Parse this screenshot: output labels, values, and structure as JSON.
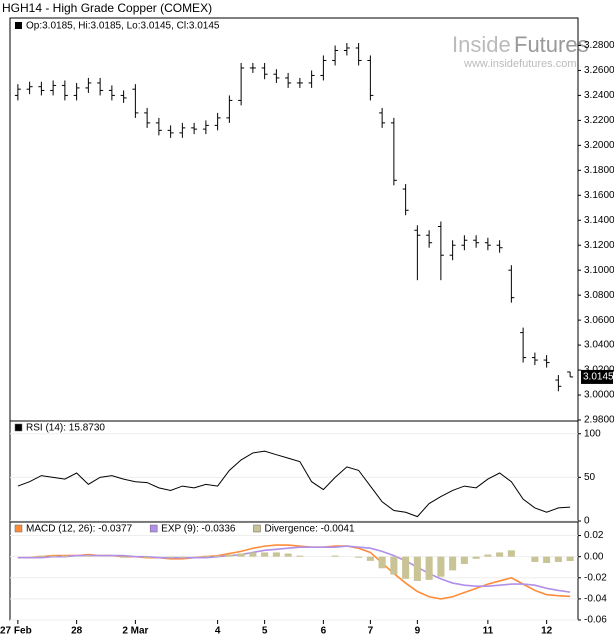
{
  "header": {
    "title": "HGH14 - High Grade Copper (COMEX)"
  },
  "logo": {
    "brand_a": "Inside",
    "brand_b": "Futures",
    "url": "www.insidefutures.com"
  },
  "chart_data": [
    {
      "type": "ohlc",
      "info_label": "Op:3.0185, Hi:3.0185, Lo:3.0145, Cl:3.0145",
      "color": "#000000",
      "open": [
        3.24,
        3.245,
        3.247,
        3.244,
        3.248,
        3.24,
        3.246,
        3.25,
        3.244,
        3.24,
        3.245,
        3.226,
        3.218,
        3.212,
        3.21,
        3.214,
        3.213,
        3.216,
        3.222,
        3.236,
        3.262,
        3.262,
        3.257,
        3.254,
        3.25,
        3.25,
        3.256,
        3.268,
        3.276,
        3.278,
        3.268,
        3.226,
        3.218,
        3.165,
        3.132,
        3.128,
        3.135,
        3.112,
        3.12,
        3.124,
        3.122,
        3.12,
        3.1,
        3.05,
        3.03,
        3.028,
        3.012,
        3.0185
      ],
      "high": [
        3.249,
        3.251,
        3.251,
        3.252,
        3.252,
        3.25,
        3.254,
        3.254,
        3.248,
        3.244,
        3.249,
        3.23,
        3.222,
        3.216,
        3.218,
        3.218,
        3.22,
        3.226,
        3.24,
        3.266,
        3.266,
        3.266,
        3.261,
        3.258,
        3.254,
        3.26,
        3.272,
        3.28,
        3.282,
        3.282,
        3.272,
        3.23,
        3.222,
        3.169,
        3.136,
        3.132,
        3.139,
        3.124,
        3.128,
        3.128,
        3.126,
        3.124,
        3.104,
        3.054,
        3.034,
        3.032,
        3.016,
        3.0185
      ],
      "low": [
        3.236,
        3.241,
        3.24,
        3.24,
        3.236,
        3.236,
        3.242,
        3.24,
        3.236,
        3.234,
        3.222,
        3.214,
        3.208,
        3.206,
        3.206,
        3.209,
        3.209,
        3.212,
        3.218,
        3.232,
        3.258,
        3.253,
        3.25,
        3.246,
        3.246,
        3.246,
        3.252,
        3.264,
        3.272,
        3.264,
        3.236,
        3.214,
        3.168,
        3.144,
        3.092,
        3.118,
        3.092,
        3.108,
        3.116,
        3.118,
        3.116,
        3.114,
        3.074,
        3.026,
        3.024,
        3.022,
        3.003,
        3.0145
      ],
      "close": [
        3.245,
        3.247,
        3.244,
        3.248,
        3.24,
        3.246,
        3.25,
        3.244,
        3.24,
        3.238,
        3.226,
        3.218,
        3.212,
        3.21,
        3.214,
        3.213,
        3.216,
        3.222,
        3.236,
        3.262,
        3.262,
        3.257,
        3.254,
        3.25,
        3.25,
        3.256,
        3.268,
        3.276,
        3.278,
        3.268,
        3.24,
        3.218,
        3.172,
        3.148,
        3.128,
        3.122,
        3.112,
        3.12,
        3.124,
        3.122,
        3.12,
        3.118,
        3.078,
        3.03,
        3.028,
        3.026,
        3.007,
        3.0145
      ],
      "ylim": [
        2.98,
        3.29
      ],
      "yticks": [
        {
          "value": 3.28,
          "label": "3.2800"
        },
        {
          "value": 3.26,
          "label": "3.2600"
        },
        {
          "value": 3.24,
          "label": "3.2400"
        },
        {
          "value": 3.22,
          "label": "3.2200"
        },
        {
          "value": 3.2,
          "label": "3.2000"
        },
        {
          "value": 3.18,
          "label": "3.1800"
        },
        {
          "value": 3.16,
          "label": "3.1600"
        },
        {
          "value": 3.14,
          "label": "3.1400"
        },
        {
          "value": 3.12,
          "label": "3.1200"
        },
        {
          "value": 3.1,
          "label": "3.1000"
        },
        {
          "value": 3.08,
          "label": "3.0800"
        },
        {
          "value": 3.06,
          "label": "3.0600"
        },
        {
          "value": 3.04,
          "label": "3.0400"
        },
        {
          "value": 3.02,
          "label": "3.0200"
        },
        {
          "value": 3.0,
          "label": "3.0000"
        },
        {
          "value": 2.98,
          "label": "2.9800"
        }
      ]
    },
    {
      "type": "line",
      "ylim": [
        0,
        110
      ],
      "yticks": [
        0,
        50,
        100
      ],
      "series": [
        {
          "name": "RSI (14): 15.8730",
          "color": "#000000",
          "values": [
            40,
            45,
            52,
            50,
            48,
            55,
            42,
            50,
            52,
            48,
            45,
            44,
            38,
            35,
            40,
            38,
            42,
            40,
            58,
            70,
            78,
            80,
            76,
            72,
            68,
            45,
            36,
            50,
            62,
            58,
            40,
            22,
            12,
            10,
            5,
            20,
            28,
            35,
            40,
            38,
            48,
            55,
            45,
            25,
            15,
            10,
            15,
            15.873
          ]
        }
      ]
    },
    {
      "type": "macd",
      "ylim": [
        -0.06,
        0.03
      ],
      "yticks": [
        {
          "value": 0.02,
          "label": "0.02"
        },
        {
          "value": 0,
          "label": "0.00"
        },
        {
          "value": -0.02,
          "label": "-0.02"
        },
        {
          "value": -0.04,
          "label": "-0.04"
        },
        {
          "value": -0.06,
          "label": "-0.06"
        }
      ],
      "categories": [
        "27 Feb",
        null,
        null,
        null,
        null,
        "28",
        null,
        null,
        null,
        null,
        "2 Mar",
        null,
        null,
        null,
        null,
        null,
        null,
        "4",
        null,
        null,
        null,
        "5",
        null,
        null,
        null,
        null,
        "6",
        null,
        null,
        null,
        "7",
        null,
        null,
        null,
        "9",
        null,
        null,
        null,
        null,
        null,
        "11",
        null,
        null,
        null,
        null,
        "12",
        null,
        null
      ],
      "series": [
        {
          "name": "MACD (12, 26): -0.0377",
          "color": "#ff8c3a",
          "style": "line",
          "values": [
            -0.001,
            -0.001,
            0,
            0.001,
            0.001,
            0.001,
            0.002,
            0.001,
            0.001,
            0,
            0,
            -0.001,
            -0.001,
            -0.002,
            -0.002,
            -0.001,
            0,
            0.001,
            0.003,
            0.005,
            0.008,
            0.01,
            0.011,
            0.011,
            0.01,
            0.009,
            0.009,
            0.01,
            0.01,
            0.008,
            0.004,
            -0.006,
            -0.016,
            -0.025,
            -0.033,
            -0.038,
            -0.04,
            -0.038,
            -0.034,
            -0.03,
            -0.026,
            -0.023,
            -0.02,
            -0.026,
            -0.032,
            -0.036,
            -0.037,
            -0.0377
          ]
        },
        {
          "name": "EXP (9): -0.0336",
          "color": "#b090e8",
          "style": "line",
          "values": [
            -0.001,
            -0.001,
            -0.001,
            0,
            0,
            0.001,
            0.001,
            0.001,
            0.001,
            0.001,
            0,
            0,
            -0.001,
            -0.001,
            -0.001,
            -0.001,
            -0.001,
            0,
            0.001,
            0.002,
            0.004,
            0.006,
            0.007,
            0.008,
            0.009,
            0.009,
            0.009,
            0.009,
            0.01,
            0.009,
            0.008,
            0.005,
            0.001,
            -0.004,
            -0.01,
            -0.016,
            -0.021,
            -0.025,
            -0.027,
            -0.028,
            -0.028,
            -0.027,
            -0.026,
            -0.026,
            -0.027,
            -0.03,
            -0.032,
            -0.0336
          ]
        },
        {
          "name": "Divergence: -0.0041",
          "color": "#c8c496",
          "style": "bar",
          "values": [
            0,
            0,
            0.001,
            0.001,
            0.001,
            0,
            0.001,
            0,
            0,
            -0.001,
            0,
            -0.001,
            0,
            -0.001,
            -0.001,
            0,
            0.001,
            0.001,
            0.002,
            0.003,
            0.004,
            0.004,
            0.004,
            0.003,
            0.001,
            0,
            0,
            0.001,
            0,
            -0.001,
            -0.004,
            -0.011,
            -0.017,
            -0.021,
            -0.023,
            -0.022,
            -0.019,
            -0.013,
            -0.007,
            -0.002,
            0.002,
            0.004,
            0.006,
            0,
            -0.005,
            -0.006,
            -0.005,
            -0.0041
          ]
        }
      ]
    }
  ]
}
